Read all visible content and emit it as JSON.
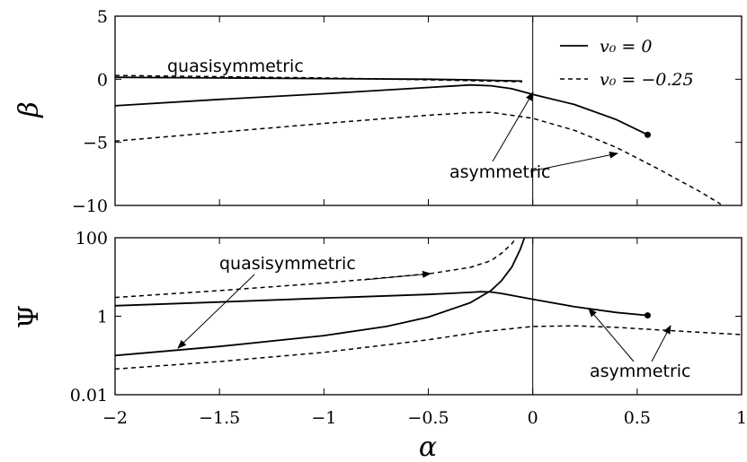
{
  "chart_data": [
    {
      "type": "line",
      "panel": "top",
      "ylabel": "β",
      "xlim": [
        -2,
        1
      ],
      "ylim": [
        -10,
        5
      ],
      "yticks": [
        {
          "value": 5,
          "label": "5"
        },
        {
          "value": 0,
          "label": "0"
        },
        {
          "value": -5,
          "label": "−5"
        },
        {
          "value": -10,
          "label": "−10"
        }
      ],
      "vline_x": 0,
      "legend": {
        "placement": "top-right",
        "entries": [
          {
            "label": "v₀ = 0",
            "style": "solid"
          },
          {
            "label": "v₀ = −0.25",
            "style": "dashed"
          }
        ]
      },
      "series": [
        {
          "name": "v₀ = 0",
          "style": "solid",
          "kind": "quasisymmetric",
          "x": [
            -2,
            -1.5,
            -1,
            -0.5,
            -0.3,
            -0.05
          ],
          "y": [
            0.15,
            0.1,
            0.05,
            0.0,
            -0.05,
            -0.15
          ]
        },
        {
          "name": "v₀ = 0",
          "style": "solid",
          "kind": "asymmetric",
          "x": [
            -2,
            -1.5,
            -1,
            -0.5,
            -0.3,
            -0.2,
            -0.1,
            0,
            0.2,
            0.4,
            0.55
          ],
          "y": [
            -2.1,
            -1.6,
            -1.15,
            -0.65,
            -0.45,
            -0.52,
            -0.75,
            -1.2,
            -2.0,
            -3.2,
            -4.4
          ],
          "end_marker": true
        },
        {
          "name": "v₀ = −0.25",
          "style": "dashed",
          "kind": "quasisymmetric",
          "x": [
            -2,
            -1.5,
            -1,
            -0.5,
            -0.05
          ],
          "y": [
            0.3,
            0.2,
            0.1,
            -0.05,
            -0.2
          ]
        },
        {
          "name": "v₀ = −0.25",
          "style": "dashed",
          "kind": "asymmetric",
          "x": [
            -2,
            -1.5,
            -1,
            -0.5,
            -0.3,
            -0.2,
            0,
            0.2,
            0.4,
            0.6,
            0.8,
            0.9
          ],
          "y": [
            -4.9,
            -4.2,
            -3.5,
            -2.85,
            -2.65,
            -2.62,
            -3.1,
            -4.05,
            -5.4,
            -7.1,
            -8.9,
            -9.9
          ]
        }
      ],
      "annotations": [
        {
          "text": "quasisymmetric"
        },
        {
          "text": "asymmetric"
        }
      ]
    },
    {
      "type": "line",
      "panel": "bottom",
      "ylabel": "Ψ",
      "yscale": "log",
      "xlabel": "α",
      "xlim": [
        -2,
        1
      ],
      "ylim": [
        0.01,
        100
      ],
      "yticks": [
        {
          "value": 100,
          "label": "100"
        },
        {
          "value": 1,
          "label": "1"
        },
        {
          "value": 0.01,
          "label": "0.01"
        }
      ],
      "xticks": [
        {
          "value": -2,
          "label": "−2"
        },
        {
          "value": -1.5,
          "label": "−1.5"
        },
        {
          "value": -1,
          "label": "−1"
        },
        {
          "value": -0.5,
          "label": "−0.5"
        },
        {
          "value": 0,
          "label": "0"
        },
        {
          "value": 0.5,
          "label": "0.5"
        },
        {
          "value": 1,
          "label": "1"
        }
      ],
      "vline_x": 0,
      "series": [
        {
          "name": "v₀ = 0",
          "style": "solid",
          "kind": "quasisymmetric",
          "x": [
            -2,
            -1.5,
            -1,
            -0.7,
            -0.5,
            -0.3,
            -0.2,
            -0.15,
            -0.1,
            -0.06,
            -0.04
          ],
          "y": [
            0.1,
            0.17,
            0.32,
            0.55,
            0.95,
            2.2,
            4.5,
            8,
            18,
            50,
            100
          ]
        },
        {
          "name": "v₀ = 0",
          "style": "solid",
          "kind": "asymmetric",
          "x": [
            -2,
            -1.5,
            -1,
            -0.5,
            -0.3,
            -0.25,
            -0.2,
            -0.15,
            0,
            0.2,
            0.4,
            0.55
          ],
          "y": [
            1.85,
            2.3,
            2.9,
            3.6,
            4.05,
            4.2,
            4.15,
            3.8,
            2.7,
            1.75,
            1.25,
            1.05
          ],
          "end_marker": true
        },
        {
          "name": "v₀ = −0.25",
          "style": "dashed",
          "kind": "quasisymmetric",
          "x": [
            -2,
            -1.5,
            -1,
            -0.5,
            -0.3,
            -0.2,
            -0.15,
            -0.1,
            -0.08
          ],
          "y": [
            3,
            4.5,
            7,
            12,
            17.5,
            26,
            40,
            70,
            100
          ]
        },
        {
          "name": "v₀ = −0.25",
          "style": "dashed",
          "kind": "asymmetric",
          "x": [
            -2,
            -1.5,
            -1,
            -0.5,
            -0.25,
            0,
            0.2,
            0.4,
            0.6,
            0.8,
            1.0
          ],
          "y": [
            0.045,
            0.07,
            0.12,
            0.25,
            0.4,
            0.55,
            0.57,
            0.52,
            0.45,
            0.39,
            0.34
          ]
        }
      ],
      "annotations": [
        {
          "text": "quasisymmetric"
        },
        {
          "text": "asymmetric"
        }
      ]
    }
  ]
}
